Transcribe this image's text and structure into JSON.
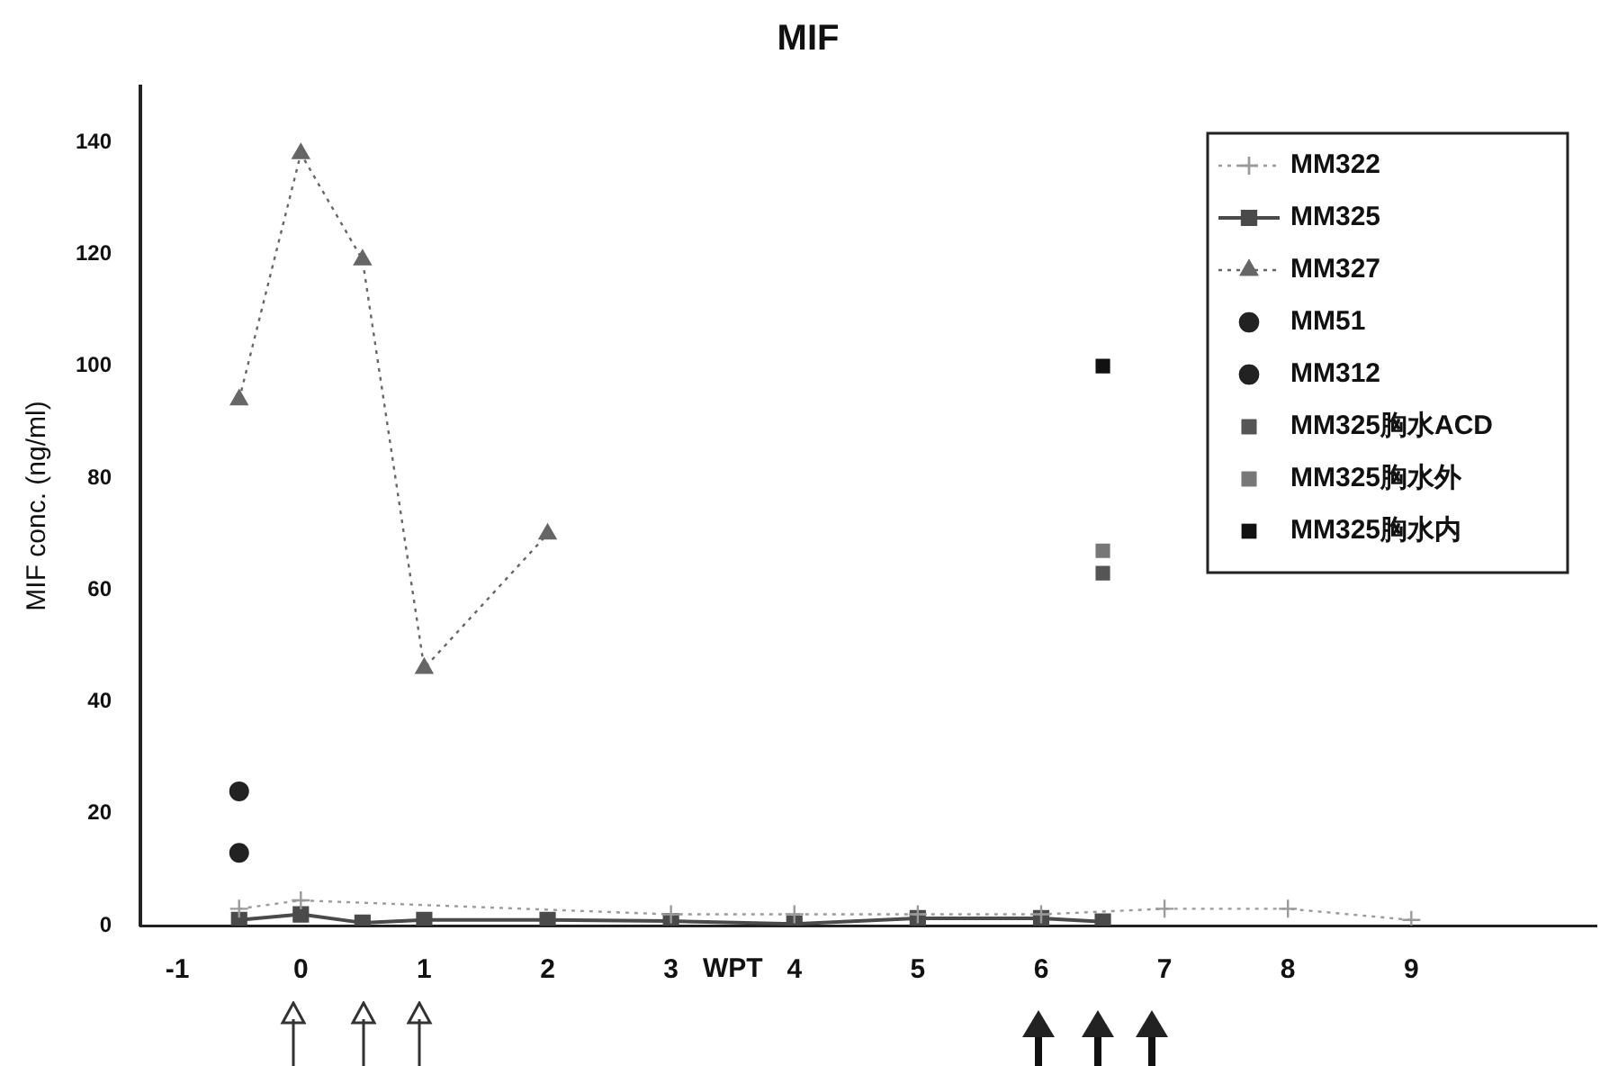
{
  "chart_data": {
    "type": "line",
    "title": "MIF",
    "xlabel": "WPT",
    "ylabel": "MIF conc. (ng/ml)",
    "xlim": [
      -1.3,
      10.5
    ],
    "xticks": [
      -1,
      0,
      1,
      2,
      3,
      4,
      5,
      6,
      7,
      8,
      9
    ],
    "ylim": [
      0,
      150
    ],
    "yticks": [
      0,
      20,
      40,
      60,
      80,
      100,
      120,
      140
    ],
    "grid": false,
    "legend": "top right",
    "series": [
      {
        "name": "MM322",
        "color": "#9a9a9a",
        "marker": "cross",
        "line_style": "dotted",
        "x": [
          -0.5,
          0,
          3,
          4,
          5,
          6,
          7,
          8,
          9
        ],
        "values": [
          3,
          4.5,
          2,
          2,
          2,
          2,
          3,
          3,
          1
        ]
      },
      {
        "name": "MM325",
        "color": "#4a4a4a",
        "marker": "square",
        "line_style": "solid",
        "x": [
          -0.5,
          0,
          0.5,
          1,
          2,
          3,
          4,
          5,
          6,
          6.5
        ],
        "values": [
          1,
          2,
          0.5,
          1,
          1,
          0.8,
          0.3,
          1.3,
          1.3,
          0.7
        ]
      },
      {
        "name": "MM327",
        "color": "#666666",
        "marker": "triangle",
        "line_style": "dotted",
        "x": [
          -0.5,
          0,
          0.5,
          1,
          2
        ],
        "values": [
          94,
          138,
          119,
          46,
          70
        ]
      },
      {
        "name": "MM51",
        "type": "scatter",
        "color": "#222222",
        "marker": "circle",
        "x": [
          -0.5
        ],
        "values": [
          24
        ]
      },
      {
        "name": "MM312",
        "type": "scatter",
        "color": "#222222",
        "marker": "circle",
        "x": [
          -0.5
        ],
        "values": [
          13
        ]
      },
      {
        "name": "MM325胸水ACD",
        "type": "scatter",
        "color": "#555555",
        "marker": "square",
        "x": [
          6.5
        ],
        "values": [
          63
        ]
      },
      {
        "name": "MM325胸水外",
        "type": "scatter",
        "color": "#777777",
        "marker": "square",
        "x": [
          6.5
        ],
        "values": [
          67
        ]
      },
      {
        "name": "MM325胸水内",
        "type": "scatter",
        "color": "#111111",
        "marker": "square",
        "x": [
          6.5
        ],
        "values": [
          100
        ]
      }
    ]
  }
}
